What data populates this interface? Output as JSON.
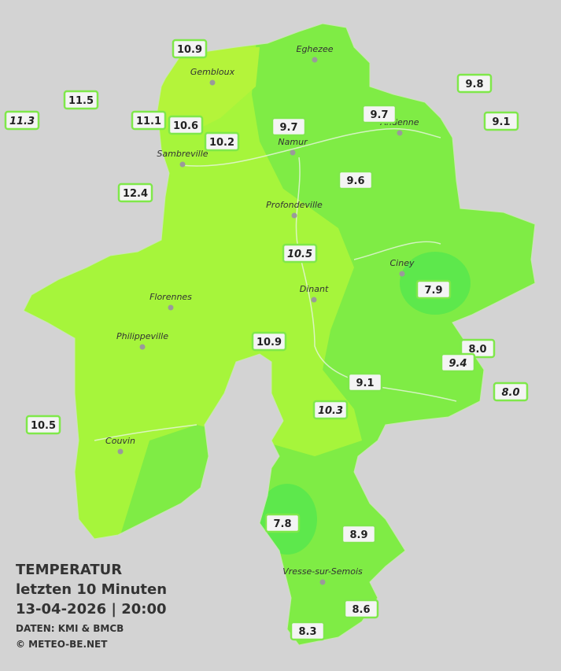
{
  "title": [
    "TEMPERATUR",
    "letzten 10 Minuten",
    "13-04-2026  |  20:00"
  ],
  "credits": [
    "DATEN: KMI & BMCB",
    "© METEO-BE.NET"
  ],
  "cities": [
    "Eghezee",
    "Gembloux",
    "Andenne",
    "Namur",
    "Sambreville",
    "Profondeville",
    "Ciney",
    "Dinant",
    "Florennes",
    "Philippeville",
    "Couvin",
    "Vresse-sur-Semois"
  ],
  "stations": [
    {
      "value": "10.9"
    },
    {
      "value": "11.5"
    },
    {
      "value": "11.3",
      "style": "italic"
    },
    {
      "value": "11.1"
    },
    {
      "value": "10.6"
    },
    {
      "value": "10.2"
    },
    {
      "value": "9.7"
    },
    {
      "value": "9.7"
    },
    {
      "value": "9.8"
    },
    {
      "value": "9.1"
    },
    {
      "value": "9.6"
    },
    {
      "value": "12.4"
    },
    {
      "value": "10.5",
      "style": "italic"
    },
    {
      "value": "7.9"
    },
    {
      "value": "10.9"
    },
    {
      "value": "8.0"
    },
    {
      "value": "9.4",
      "style": "italic"
    },
    {
      "value": "9.1"
    },
    {
      "value": "8.0",
      "style": "italic"
    },
    {
      "value": "10.3",
      "style": "italic"
    },
    {
      "value": "10.5"
    },
    {
      "value": "7.8"
    },
    {
      "value": "8.9"
    },
    {
      "value": "8.6"
    },
    {
      "value": "8.3"
    }
  ]
}
